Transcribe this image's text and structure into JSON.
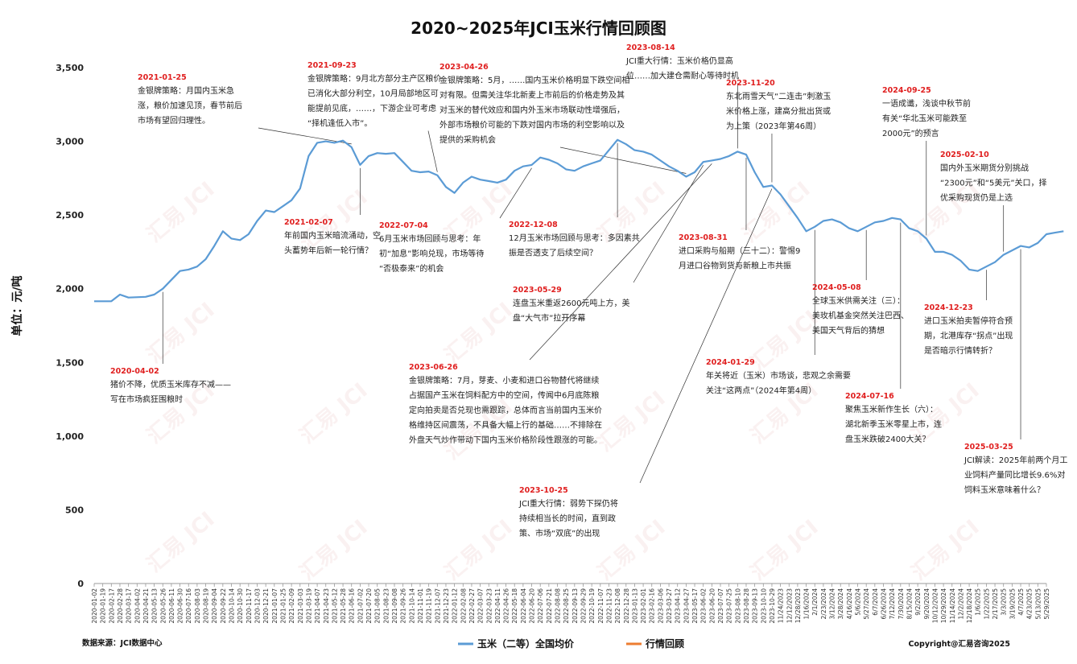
{
  "chart_data": {
    "type": "line",
    "title": "2020~2025年JCI玉米行情回顾图",
    "ylabel": "单位：元/吨",
    "ylim": [
      0,
      3500
    ],
    "yticks": [
      "0",
      "500",
      "1,000",
      "1,500",
      "2,000",
      "2,500",
      "3,000",
      "3,500"
    ],
    "grid": false,
    "legend_position": "bottom",
    "series": [
      {
        "name": "玉米（二等）全国均价",
        "color": "#5b9bd5",
        "points": [
          [
            0,
            1915
          ],
          [
            2,
            1915
          ],
          [
            3,
            1960
          ],
          [
            4,
            1940
          ],
          [
            6,
            1945
          ],
          [
            7,
            1960
          ],
          [
            8,
            2000
          ],
          [
            9,
            2060
          ],
          [
            10,
            2120
          ],
          [
            11,
            2130
          ],
          [
            12,
            2150
          ],
          [
            13,
            2200
          ],
          [
            14,
            2290
          ],
          [
            15,
            2390
          ],
          [
            16,
            2340
          ],
          [
            17,
            2330
          ],
          [
            18,
            2370
          ],
          [
            19,
            2460
          ],
          [
            20,
            2530
          ],
          [
            21,
            2520
          ],
          [
            22,
            2560
          ],
          [
            23,
            2600
          ],
          [
            24,
            2680
          ],
          [
            25,
            2900
          ],
          [
            26,
            2990
          ],
          [
            27,
            3000
          ],
          [
            28,
            2990
          ],
          [
            29,
            3005
          ],
          [
            30,
            2960
          ],
          [
            31,
            2840
          ],
          [
            32,
            2900
          ],
          [
            33,
            2920
          ],
          [
            34,
            2915
          ],
          [
            35,
            2920
          ],
          [
            36,
            2860
          ],
          [
            37,
            2800
          ],
          [
            38,
            2790
          ],
          [
            39,
            2795
          ],
          [
            40,
            2770
          ],
          [
            41,
            2690
          ],
          [
            42,
            2650
          ],
          [
            43,
            2720
          ],
          [
            44,
            2760
          ],
          [
            45,
            2740
          ],
          [
            46,
            2730
          ],
          [
            47,
            2720
          ],
          [
            48,
            2740
          ],
          [
            49,
            2800
          ],
          [
            50,
            2830
          ],
          [
            51,
            2840
          ],
          [
            52,
            2890
          ],
          [
            53,
            2875
          ],
          [
            54,
            2850
          ],
          [
            55,
            2810
          ],
          [
            56,
            2800
          ],
          [
            57,
            2830
          ],
          [
            58,
            2850
          ],
          [
            59,
            2870
          ],
          [
            60,
            2940
          ],
          [
            61,
            3010
          ],
          [
            62,
            2980
          ],
          [
            63,
            2940
          ],
          [
            64,
            2930
          ],
          [
            65,
            2910
          ],
          [
            66,
            2870
          ],
          [
            67,
            2830
          ],
          [
            68,
            2800
          ],
          [
            69,
            2760
          ],
          [
            70,
            2790
          ],
          [
            71,
            2860
          ],
          [
            72,
            2870
          ],
          [
            73,
            2880
          ],
          [
            74,
            2900
          ],
          [
            75,
            2930
          ],
          [
            76,
            2910
          ],
          [
            77,
            2790
          ],
          [
            78,
            2690
          ],
          [
            79,
            2700
          ],
          [
            80,
            2640
          ],
          [
            81,
            2560
          ],
          [
            82,
            2480
          ],
          [
            83,
            2390
          ],
          [
            84,
            2420
          ],
          [
            85,
            2460
          ],
          [
            86,
            2470
          ],
          [
            87,
            2450
          ],
          [
            88,
            2410
          ],
          [
            89,
            2390
          ],
          [
            90,
            2420
          ],
          [
            91,
            2450
          ],
          [
            92,
            2460
          ],
          [
            93,
            2480
          ],
          [
            94,
            2470
          ],
          [
            95,
            2410
          ],
          [
            96,
            2390
          ],
          [
            97,
            2340
          ],
          [
            98,
            2250
          ],
          [
            99,
            2250
          ],
          [
            100,
            2230
          ],
          [
            101,
            2190
          ],
          [
            102,
            2130
          ],
          [
            103,
            2120
          ],
          [
            104,
            2150
          ],
          [
            105,
            2180
          ],
          [
            106,
            2230
          ],
          [
            107,
            2260
          ],
          [
            108,
            2290
          ],
          [
            109,
            2280
          ],
          [
            110,
            2310
          ],
          [
            111,
            2370
          ],
          [
            112,
            2380
          ],
          [
            113,
            2390
          ]
        ]
      },
      {
        "name": "行情回顾",
        "color": "#ed7d31",
        "points": []
      }
    ],
    "x_tick_labels": [
      "2020-01-02",
      "2020-01-19",
      "2020-02-17",
      "2020-02-28",
      "2020-03-17",
      "2020-04-02",
      "2020-04-21",
      "2020-05-13",
      "2020-05-26",
      "2020-06-11",
      "2020-06-30",
      "2020-07-16",
      "2020-08-03",
      "2020-08-19",
      "2020-09-04",
      "2020-09-22",
      "2020-10-14",
      "2020-10-30",
      "2020-11-17",
      "2020-12-03",
      "2020-12-21",
      "2021-01-07",
      "2021-01-25",
      "2021-02-09",
      "2021-03-03",
      "2021-03-19",
      "2021-04-07",
      "2021-04-23",
      "2021-05-12",
      "2021-05-28",
      "2021-06-16",
      "2021-07-02",
      "2021-07-20",
      "2021-08-05",
      "2021-08-23",
      "2021-09-08",
      "2021-09-26",
      "2021-10-14",
      "2021-11-01",
      "2021-11-19",
      "2021-12-07",
      "2021-12-23",
      "2022-01-12",
      "2022-02-08",
      "2022-02-27",
      "2022-03-07",
      "2022-03-23",
      "2022-04-11",
      "2022-04-26",
      "2022-05-18",
      "2022-06-04",
      "2022-06-20",
      "2022-07-06",
      "2022-07-21",
      "2022-08-08",
      "2022-08-25",
      "2022-09-13",
      "2022-09-29",
      "2022-10-19",
      "2022-11-07",
      "2022-11-23",
      "2022-12-08",
      "2022-12-28",
      "2023-01-13",
      "2023-02-01",
      "2023-02-16",
      "2023-03-06",
      "2023-03-27",
      "2023-04-12",
      "2023-04-27",
      "2023-05-17",
      "2023-06-02",
      "2023-06-20",
      "2023-07-07",
      "2023-07-25",
      "2023-08-10",
      "2023-08-28",
      "2023-09-13",
      "2023-10-10",
      "2023-10-29",
      "11/24/2023",
      "12/12/2023",
      "12/28/2023",
      "1/16/2024",
      "2/1/2024",
      "2/23/2024",
      "3/12/2024",
      "3/28/2024",
      "4/16/2024",
      "5/6/2024",
      "5/27/2024",
      "6/7/2024",
      "6/26/2024",
      "7/12/2024",
      "7/30/2024",
      "8/15/2024",
      "9/2/2024",
      "9/20/2024",
      "10/12/2024",
      "10/29/2024",
      "11/14/2024",
      "12/2/2024",
      "12/18/2024",
      "1/6/2025",
      "1/22/2025",
      "2/17/2025",
      "3/3/2025",
      "3/19/2025",
      "4/7/2025",
      "4/23/2025",
      "5/13/2025",
      "5/29/2025"
    ],
    "annotations": [
      {
        "date": "2021-01-25",
        "text": [
          "金银牌策略：月国内玉米急",
          "涨，粮价加速见顶，春节前后",
          "市场有望回归理性。"
        ],
        "target_x": 30
      },
      {
        "date": "2021-09-23",
        "text": [
          "金银牌策略：9月北方部分主产区粮价",
          "已消化大部分利空，10月局部地区可",
          "能提前见底，……，下游企业可考虑",
          "“择机逢低入市”。"
        ],
        "target_x": 40
      },
      {
        "date": "2023-04-26",
        "text": [
          "金银牌策略：5月，……国内玉米价格明显下跌空间相",
          "对有限。但需关注华北新麦上市前后的价格走势及其",
          "对玉米的替代效应和国内外玉米市场联动性增强后，",
          "外部市场粮价可能的下跌对国内市场的利空影响以及",
          "提供的采购机会"
        ],
        "target_x": 69
      },
      {
        "date": "2023-08-14",
        "text": [
          "JCI重大行情：玉米价格仍显高",
          "位……加大建仓需耐心等待时机"
        ],
        "target_x": 75
      },
      {
        "date": "2023-11-20",
        "text": [
          "东北雨雪天气“二连击”刺激玉",
          "米价格上涨，建高分批出货或",
          "为上策（2023年第46周）"
        ],
        "target_x": 79
      },
      {
        "date": "2024-09-25",
        "text": [
          "一语成谶，浅谈中秋节前",
          "有关“华北玉米可能跌至",
          "2000元”的预言"
        ],
        "target_x": 97
      },
      {
        "date": "2025-02-10",
        "text": [
          "国内外玉米期货分别挑战",
          "“2300元”和“5美元”关口，择",
          "优采购现货仍是上选"
        ],
        "target_x": 106
      },
      {
        "date": "2021-02-07",
        "text": [
          "年前国内玉米暗流涌动，空",
          "头蓄势年后新一轮行情？"
        ],
        "target_x": 31
      },
      {
        "date": "2022-07-04",
        "text": [
          "6月玉米市场回顾与思考：年",
          "初“加息”影响兑现，市场等待",
          "“否极泰来”的机会"
        ],
        "target_x": 51
      },
      {
        "date": "2022-12-08",
        "text": [
          "12月玉米市场回顾与思考：多因素共",
          "振是否透支了后续空间？"
        ],
        "target_x": 61
      },
      {
        "date": "2023-08-31",
        "text": [
          "进口采购与船期（三十二）：警惕9",
          "月进口谷物到货与新粮上市共振"
        ],
        "target_x": 76
      },
      {
        "date": "2023-05-29",
        "text": [
          "连盘玉米重返2600元吨上方，美",
          "盘“大气市”拉开序幕"
        ],
        "target_x": 71
      },
      {
        "date": "2020-04-02",
        "text": [
          "猪价不降，优质玉米库存不减——",
          "写在市场疯狂围粮时"
        ],
        "target_x": 8
      },
      {
        "date": "2023-06-26",
        "text": [
          "金银牌策略：7月，芽麦、小麦和进口谷物替代将继续",
          "占据国产玉米在饲料配方中的空间，传闻中6月底陈粮",
          "定向拍卖是否兑现也需跟踪，总体而言当前国内玉米价",
          "格维持区间震荡，不具备大幅上行的基础……不排除在",
          "外盘天气炒作带动下国内玉米价格阶段性跟涨的可能。"
        ],
        "target_x": 72
      },
      {
        "date": "2023-10-25",
        "text": [
          "JCI重大行情：弱势下探仍将",
          "持续相当长的时间，直到政",
          "策、市场“双底”的出现"
        ],
        "target_x": 79
      },
      {
        "date": "2024-01-29",
        "text": [
          "年关将近（玉米）市场谈，悲观之余需要",
          "关注“这两点”（2024年第4周）"
        ],
        "target_x": 84
      },
      {
        "date": "2024-05-08",
        "text": [
          "全球玉米供需关注（三）：",
          "美玫机基金突然关注巴西、",
          "美国天气背后的猜想"
        ],
        "target_x": 90
      },
      {
        "date": "2024-07-16",
        "text": [
          "聚焦玉米新作生长（六）：",
          "湖北新季玉米零星上市，连",
          "盘玉米跌破2400大关？"
        ],
        "target_x": 94
      },
      {
        "date": "2024-12-23",
        "text": [
          "进口玉米拍卖暂停符合预",
          "期，北港库存“拐点”出现",
          "是否暗示行情转折？"
        ],
        "target_x": 104
      },
      {
        "date": "2025-03-25",
        "text": [
          "JCI解读：2025年前两个月工",
          "业饲料产量同比增长9.6%对",
          "饲料玉米意味着什么？"
        ],
        "target_x": 108
      }
    ]
  },
  "footer": {
    "source": "数据来源：JCI数据中心",
    "copyright": "Copyright@汇易咨询2025"
  },
  "watermark": "汇易 JCI"
}
